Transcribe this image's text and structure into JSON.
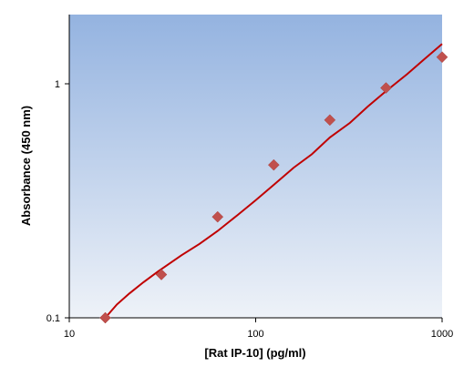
{
  "chart_data": {
    "type": "scatter",
    "xlabel": "[Rat IP-10] (pg/ml)",
    "ylabel": "Absorbance (450 nm)",
    "x_scale": "log",
    "y_scale": "log",
    "xlim": [
      10,
      1000
    ],
    "ylim": [
      0.1,
      2
    ],
    "x_ticks": [
      10,
      100,
      1000
    ],
    "x_tick_labels": [
      "10",
      "100",
      "1000"
    ],
    "y_ticks": [
      0.1,
      1
    ],
    "y_tick_labels": [
      "0.1",
      "1"
    ],
    "grid": false,
    "background": "gradient blue (top) to light gray-blue (bottom)",
    "series": [
      {
        "kind": "points",
        "marker": "diamond",
        "color": "#c0504d",
        "x": [
          15.6,
          31.2,
          62.5,
          125,
          250,
          500,
          1000
        ],
        "y": [
          0.1,
          0.153,
          0.27,
          0.45,
          0.7,
          0.96,
          1.3
        ]
      },
      {
        "kind": "fit-curve",
        "color": "#c00000",
        "x": [
          15.6,
          18,
          21,
          25,
          30,
          40,
          50,
          62.5,
          80,
          100,
          125,
          160,
          200,
          250,
          320,
          400,
          500,
          650,
          800,
          1000
        ],
        "y": [
          0.1,
          0.114,
          0.127,
          0.142,
          0.158,
          0.185,
          0.207,
          0.235,
          0.275,
          0.318,
          0.37,
          0.438,
          0.5,
          0.59,
          0.68,
          0.8,
          0.93,
          1.1,
          1.27,
          1.48
        ]
      }
    ],
    "colors": {
      "bg_top": "#94b3e0",
      "bg_bottom": "#eef2f8",
      "marker": "#c0504d",
      "curve": "#c00000"
    }
  }
}
